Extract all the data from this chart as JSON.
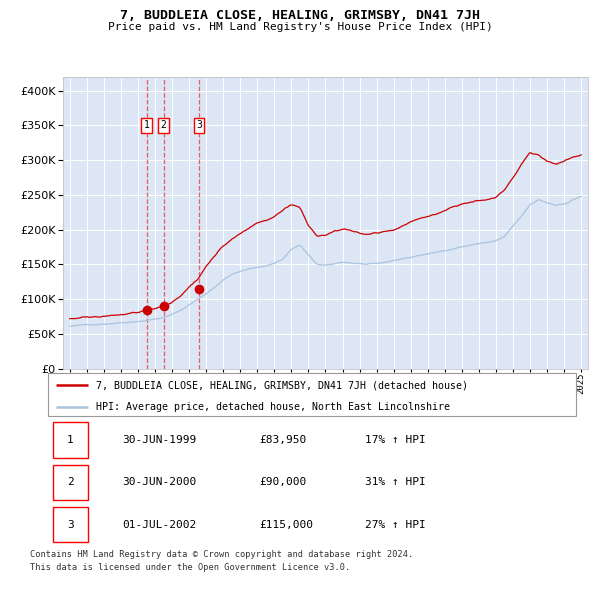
{
  "title": "7, BUDDLEIA CLOSE, HEALING, GRIMSBY, DN41 7JH",
  "subtitle": "Price paid vs. HM Land Registry's House Price Index (HPI)",
  "legend_line1": "7, BUDDLEIA CLOSE, HEALING, GRIMSBY, DN41 7JH (detached house)",
  "legend_line2": "HPI: Average price, detached house, North East Lincolnshire",
  "footer1": "Contains HM Land Registry data © Crown copyright and database right 2024.",
  "footer2": "This data is licensed under the Open Government Licence v3.0.",
  "hpi_color": "#aac4de",
  "price_color": "#cc0000",
  "marker_color": "#cc0000",
  "bg_color": "#dce6f5",
  "grid_color": "#ffffff",
  "vline_color": "#ee4444",
  "sale_points": [
    {
      "date": 1999.5,
      "price": 83950,
      "label": "1"
    },
    {
      "date": 2000.5,
      "price": 90000,
      "label": "2"
    },
    {
      "date": 2002.58,
      "price": 115000,
      "label": "3"
    }
  ],
  "table_rows": [
    [
      "1",
      "30-JUN-1999",
      "£83,950",
      "17% ↑ HPI"
    ],
    [
      "2",
      "30-JUN-2000",
      "£90,000",
      "31% ↑ HPI"
    ],
    [
      "3",
      "01-JUL-2002",
      "£115,000",
      "27% ↑ HPI"
    ]
  ],
  "ylim": [
    0,
    420000
  ],
  "xlim": [
    1994.6,
    2025.4
  ],
  "hpi_anchors": [
    [
      1995.0,
      61000
    ],
    [
      1996.0,
      63000
    ],
    [
      1997.0,
      65000
    ],
    [
      1998.0,
      67000
    ],
    [
      1999.0,
      69000
    ],
    [
      1999.5,
      70500
    ],
    [
      2000.0,
      72000
    ],
    [
      2000.5,
      74000
    ],
    [
      2001.0,
      78000
    ],
    [
      2001.5,
      84000
    ],
    [
      2002.0,
      92000
    ],
    [
      2002.5,
      100000
    ],
    [
      2003.0,
      108000
    ],
    [
      2003.5,
      118000
    ],
    [
      2004.0,
      128000
    ],
    [
      2004.5,
      136000
    ],
    [
      2005.0,
      140000
    ],
    [
      2005.5,
      143000
    ],
    [
      2006.0,
      146000
    ],
    [
      2006.5,
      148000
    ],
    [
      2007.0,
      152000
    ],
    [
      2007.5,
      158000
    ],
    [
      2008.0,
      172000
    ],
    [
      2008.5,
      178000
    ],
    [
      2009.0,
      163000
    ],
    [
      2009.5,
      150000
    ],
    [
      2010.0,
      148000
    ],
    [
      2010.5,
      150000
    ],
    [
      2011.0,
      153000
    ],
    [
      2011.5,
      152000
    ],
    [
      2012.0,
      151000
    ],
    [
      2012.5,
      150000
    ],
    [
      2013.0,
      150000
    ],
    [
      2013.5,
      152000
    ],
    [
      2014.0,
      155000
    ],
    [
      2014.5,
      158000
    ],
    [
      2015.0,
      160000
    ],
    [
      2015.5,
      163000
    ],
    [
      2016.0,
      165000
    ],
    [
      2016.5,
      167000
    ],
    [
      2017.0,
      170000
    ],
    [
      2017.5,
      173000
    ],
    [
      2018.0,
      176000
    ],
    [
      2018.5,
      178000
    ],
    [
      2019.0,
      180000
    ],
    [
      2019.5,
      182000
    ],
    [
      2020.0,
      184000
    ],
    [
      2020.5,
      190000
    ],
    [
      2021.0,
      205000
    ],
    [
      2021.5,
      218000
    ],
    [
      2022.0,
      235000
    ],
    [
      2022.5,
      242000
    ],
    [
      2023.0,
      238000
    ],
    [
      2023.5,
      235000
    ],
    [
      2024.0,
      237000
    ],
    [
      2024.5,
      243000
    ],
    [
      2025.0,
      248000
    ]
  ],
  "price_anchors": [
    [
      1995.0,
      72000
    ],
    [
      1996.0,
      74000
    ],
    [
      1997.0,
      75000
    ],
    [
      1998.0,
      77000
    ],
    [
      1999.0,
      79000
    ],
    [
      1999.5,
      83950
    ],
    [
      2000.0,
      86000
    ],
    [
      2000.5,
      90000
    ],
    [
      2001.0,
      96000
    ],
    [
      2001.5,
      105000
    ],
    [
      2002.0,
      117000
    ],
    [
      2002.5,
      128000
    ],
    [
      2003.0,
      148000
    ],
    [
      2003.5,
      162000
    ],
    [
      2004.0,
      178000
    ],
    [
      2004.5,
      188000
    ],
    [
      2005.0,
      196000
    ],
    [
      2005.5,
      204000
    ],
    [
      2006.0,
      210000
    ],
    [
      2006.5,
      214000
    ],
    [
      2007.0,
      220000
    ],
    [
      2007.5,
      228000
    ],
    [
      2008.0,
      236000
    ],
    [
      2008.5,
      232000
    ],
    [
      2009.0,
      205000
    ],
    [
      2009.5,
      188000
    ],
    [
      2010.0,
      190000
    ],
    [
      2010.5,
      196000
    ],
    [
      2011.0,
      200000
    ],
    [
      2011.5,
      198000
    ],
    [
      2012.0,
      194000
    ],
    [
      2012.5,
      193000
    ],
    [
      2013.0,
      194000
    ],
    [
      2013.5,
      197000
    ],
    [
      2014.0,
      200000
    ],
    [
      2014.5,
      205000
    ],
    [
      2015.0,
      210000
    ],
    [
      2015.5,
      215000
    ],
    [
      2016.0,
      218000
    ],
    [
      2016.5,
      222000
    ],
    [
      2017.0,
      228000
    ],
    [
      2017.5,
      234000
    ],
    [
      2018.0,
      238000
    ],
    [
      2018.5,
      240000
    ],
    [
      2019.0,
      243000
    ],
    [
      2019.5,
      245000
    ],
    [
      2020.0,
      248000
    ],
    [
      2020.5,
      258000
    ],
    [
      2021.0,
      275000
    ],
    [
      2021.5,
      295000
    ],
    [
      2022.0,
      312000
    ],
    [
      2022.5,
      308000
    ],
    [
      2023.0,
      298000
    ],
    [
      2023.5,
      295000
    ],
    [
      2024.0,
      298000
    ],
    [
      2024.5,
      303000
    ],
    [
      2025.0,
      307000
    ]
  ]
}
